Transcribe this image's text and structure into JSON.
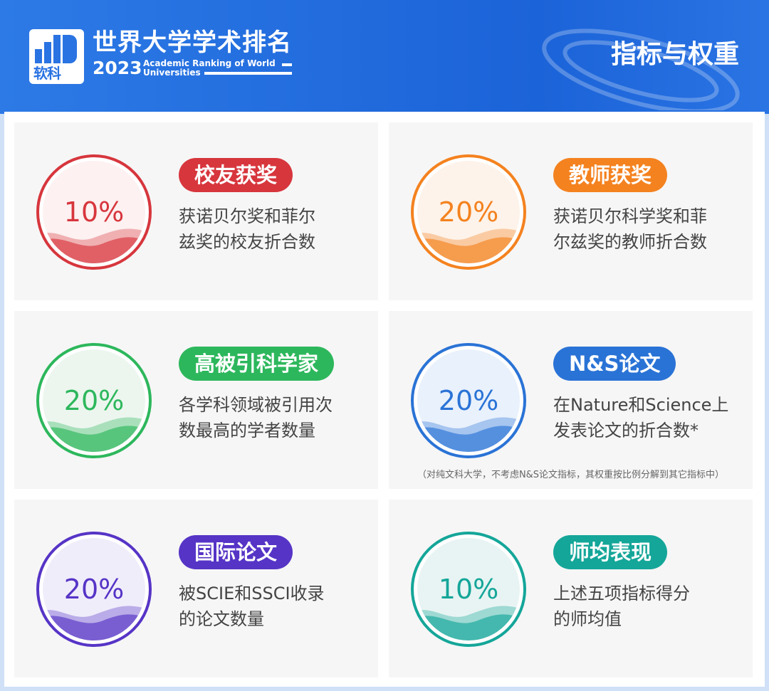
{
  "header": {
    "logo_text": "软科",
    "title": "世界大学学术排名",
    "year": "2023",
    "subtitle_line1": "Academic Ranking of World",
    "subtitle_line2": "Universities",
    "section_title": "指标与权重"
  },
  "indicators": [
    {
      "percent": "10%",
      "label": "校友获奖",
      "desc_line1": "获诺贝尔奖和菲尔",
      "desc_line2": "兹奖的校友折合数",
      "color": "#d7363d",
      "tint": "#fdf1f1"
    },
    {
      "percent": "20%",
      "label": "教师获奖",
      "desc_line1": "获诺贝尔科学奖和菲",
      "desc_line2": "尔兹奖的教师折合数",
      "color": "#f4821f",
      "tint": "#fdf3ea"
    },
    {
      "percent": "20%",
      "label": "高被引科学家",
      "desc_line1": "各学科领域被引用次",
      "desc_line2": "数最高的学者数量",
      "color": "#2db75c",
      "tint": "#ecf6ef"
    },
    {
      "percent": "20%",
      "label": "N&S论文",
      "desc_line1": "在Nature和Science上",
      "desc_line2": "发表论文的折合数*",
      "color": "#2a73d6",
      "tint": "#e9f1fc",
      "note": "（对纯文科大学，不考虑N&S论文指标，其权重按比例分解到其它指标中）"
    },
    {
      "percent": "20%",
      "label": "国际论文",
      "desc_line1": "被SCIE和SSCI收录",
      "desc_line2": "的论文数量",
      "color": "#5634c6",
      "tint": "#f0edfb"
    },
    {
      "percent": "10%",
      "label": "师均表现",
      "desc_line1": "上述五项指标得分",
      "desc_line2": "的师均值",
      "color": "#14a699",
      "tint": "#e8f4f3"
    }
  ]
}
